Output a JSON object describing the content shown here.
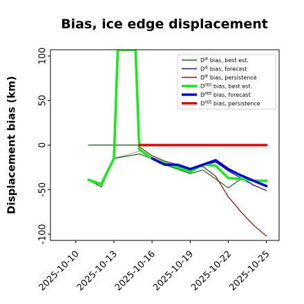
{
  "chart_data": {
    "type": "line",
    "title": "Bias, ice edge displacement",
    "xlabel": "",
    "ylabel": "Displacement bias (km)",
    "ylim": [
      -107,
      107
    ],
    "xlim": [
      "2025-10-08",
      "2025-10-26"
    ],
    "yticks": [
      100,
      50,
      0,
      -50,
      -100
    ],
    "xticks": [
      "2025-10-10",
      "2025-10-13",
      "2025-10-16",
      "2025-10-19",
      "2025-10-22",
      "2025-10-25"
    ],
    "highlighted_xtick": "2025-10-16",
    "highlight_color": "#2e8b2e",
    "grid": false,
    "legend_position": "top-right",
    "series": [
      {
        "name": "D^IE bias, best est.",
        "color": "#1f6b1f",
        "width": 1.3,
        "points": [
          [
            "2025-10-11",
            0
          ],
          [
            "2025-10-12",
            0
          ],
          [
            "2025-10-13",
            0
          ],
          [
            "2025-10-14",
            0
          ],
          [
            "2025-10-15",
            0
          ]
        ]
      },
      {
        "name": "D^IE bias, best est. ",
        "color": "#1f6b1f",
        "width": 1.3,
        "points": [
          [
            "2025-10-11",
            -39
          ],
          [
            "2025-10-12",
            -47
          ],
          [
            "2025-10-13",
            -15
          ],
          [
            "2025-10-15",
            -10
          ],
          [
            "2025-10-16",
            -15
          ],
          [
            "2025-10-17",
            -22
          ],
          [
            "2025-10-18",
            -27
          ],
          [
            "2025-10-19",
            -32
          ],
          [
            "2025-10-20",
            -28
          ],
          [
            "2025-10-21",
            -38
          ],
          [
            "2025-10-22",
            -48
          ],
          [
            "2025-10-23",
            -38
          ],
          [
            "2025-10-24",
            -40
          ],
          [
            "2025-10-25",
            -41
          ]
        ]
      },
      {
        "name": "D^IE bias, forecast",
        "color": "#1a1a8a",
        "width": 1.3,
        "points": [
          [
            "2025-10-16",
            -15
          ],
          [
            "2025-10-17",
            -22
          ],
          [
            "2025-10-18",
            -24
          ],
          [
            "2025-10-19",
            -27
          ],
          [
            "2025-10-20",
            -23
          ],
          [
            "2025-10-21",
            -19
          ],
          [
            "2025-10-22",
            -29
          ],
          [
            "2025-10-23",
            -37
          ],
          [
            "2025-10-24",
            -45
          ],
          [
            "2025-10-25",
            -51
          ]
        ]
      },
      {
        "name": "D^IE bias, persistence",
        "color": "#8b1a1a",
        "width": 1.3,
        "points": [
          [
            "2025-10-15",
            -2
          ],
          [
            "2025-10-16",
            -12
          ],
          [
            "2025-10-17",
            -18
          ],
          [
            "2025-10-18",
            -22
          ],
          [
            "2025-10-19",
            -26
          ],
          [
            "2025-10-20",
            -24
          ],
          [
            "2025-10-21",
            -35
          ],
          [
            "2025-10-22",
            -58
          ],
          [
            "2025-10-23",
            -75
          ],
          [
            "2025-10-24",
            -90
          ],
          [
            "2025-10-25",
            -102
          ]
        ]
      },
      {
        "name": "D^IIEE bias, best est.",
        "color": "#11ee11",
        "width": 3.5,
        "points": [
          [
            "2025-10-11",
            -39
          ],
          [
            "2025-10-12",
            -44
          ],
          [
            "2025-10-13",
            -15
          ],
          [
            "2025-10-13.3",
            110
          ],
          [
            "2025-10-14.7",
            110
          ],
          [
            "2025-10-15",
            -5
          ],
          [
            "2025-10-16",
            -15
          ],
          [
            "2025-10-17",
            -20
          ],
          [
            "2025-10-18",
            -25
          ],
          [
            "2025-10-19",
            -30
          ],
          [
            "2025-10-20",
            -22
          ],
          [
            "2025-10-21",
            -23
          ],
          [
            "2025-10-22",
            -37
          ],
          [
            "2025-10-23",
            -38
          ],
          [
            "2025-10-24",
            -40
          ],
          [
            "2025-10-25",
            -40
          ]
        ]
      },
      {
        "name": "D^IIEE bias, forecast",
        "color": "#0000ee",
        "width": 3.5,
        "points": [
          [
            "2025-10-16",
            -15
          ],
          [
            "2025-10-17",
            -22
          ],
          [
            "2025-10-18",
            -22
          ],
          [
            "2025-10-19",
            -27
          ],
          [
            "2025-10-20",
            -22
          ],
          [
            "2025-10-21",
            -17
          ],
          [
            "2025-10-22",
            -27
          ],
          [
            "2025-10-23",
            -34
          ],
          [
            "2025-10-24",
            -40
          ],
          [
            "2025-10-25",
            -46
          ]
        ]
      },
      {
        "name": "D^IIEE bias, persistence",
        "color": "#ee0000",
        "width": 3.5,
        "points": [
          [
            "2025-10-15",
            0
          ],
          [
            "2025-10-16",
            0
          ],
          [
            "2025-10-17",
            0
          ],
          [
            "2025-10-18",
            0
          ],
          [
            "2025-10-19",
            0
          ],
          [
            "2025-10-20",
            0
          ],
          [
            "2025-10-21",
            0
          ],
          [
            "2025-10-22",
            0
          ],
          [
            "2025-10-23",
            0
          ],
          [
            "2025-10-24",
            0
          ],
          [
            "2025-10-25",
            0
          ]
        ]
      }
    ],
    "connector": {
      "color": "#999999",
      "points": [
        [
          "2025-10-13",
          -15
        ],
        [
          "2025-10-15",
          -7
        ]
      ]
    },
    "zero_line": {
      "color": "#777777",
      "points": [
        [
          "2025-10-11",
          0
        ],
        [
          "2025-10-15",
          0
        ]
      ]
    },
    "legend": [
      {
        "prefix": "D",
        "sup": "IE",
        "suffix": " bias, best est.",
        "color": "#1f6b1f",
        "width": 1.5
      },
      {
        "prefix": "D",
        "sup": "IE",
        "suffix": " bias, forecast",
        "color": "#1a1a8a",
        "width": 1.5
      },
      {
        "prefix": "D",
        "sup": "IE",
        "suffix": " bias, persistence",
        "color": "#8b1a1a",
        "width": 1.5
      },
      {
        "prefix": "D",
        "sup": "IIEE",
        "suffix": " bias, best est.",
        "color": "#11ee11",
        "width": 3.5
      },
      {
        "prefix": "D",
        "sup": "IIEE",
        "suffix": " bias, forecast",
        "color": "#0000ee",
        "width": 3.5
      },
      {
        "prefix": "D",
        "sup": "IIEE",
        "suffix": " bias, persistence",
        "color": "#ee0000",
        "width": 3.5
      }
    ]
  }
}
